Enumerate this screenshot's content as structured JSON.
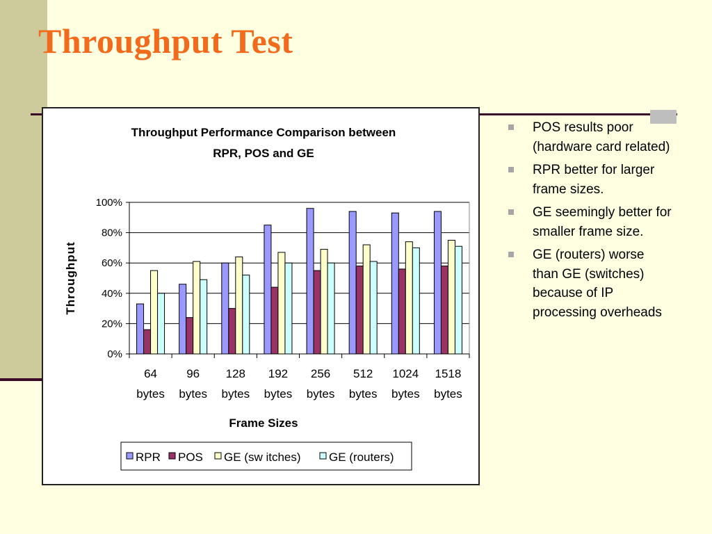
{
  "slide": {
    "title": "Throughput Test",
    "bullets": [
      "POS results poor (hardware card related)",
      "RPR better for larger frame sizes.",
      "GE seemingly better for smaller frame size.",
      "GE (routers) worse than GE (switches) because of IP processing overheads"
    ]
  },
  "chart_data": {
    "type": "bar",
    "title_lines": [
      "Throughput Performance Comparison between",
      "RPR, POS and GE"
    ],
    "xlabel": "Frame Sizes",
    "ylabel": "Throughput",
    "categories": [
      [
        "64",
        "bytes"
      ],
      [
        "96",
        "bytes"
      ],
      [
        "128",
        "bytes"
      ],
      [
        "192",
        "bytes"
      ],
      [
        "256",
        "bytes"
      ],
      [
        "512",
        "bytes"
      ],
      [
        "1024",
        "bytes"
      ],
      [
        "1518",
        "bytes"
      ]
    ],
    "yticks": [
      "0%",
      "20%",
      "40%",
      "60%",
      "80%",
      "100%"
    ],
    "ylim": [
      0,
      100
    ],
    "grid": true,
    "legend_position": "bottom",
    "series": [
      {
        "name": "RPR",
        "color": "#9999FF",
        "values": [
          33,
          46,
          60,
          85,
          96,
          94,
          93,
          94
        ]
      },
      {
        "name": "POS",
        "color": "#993366",
        "values": [
          16,
          24,
          30,
          44,
          55,
          58,
          56,
          58
        ]
      },
      {
        "name": "GE (sw itches)",
        "color": "#FFFFCC",
        "values": [
          55,
          61,
          64,
          67,
          69,
          72,
          74,
          75
        ]
      },
      {
        "name": "GE (routers)",
        "color": "#CCFFFF",
        "values": [
          40,
          49,
          52,
          60,
          60,
          61,
          70,
          71
        ]
      }
    ]
  }
}
